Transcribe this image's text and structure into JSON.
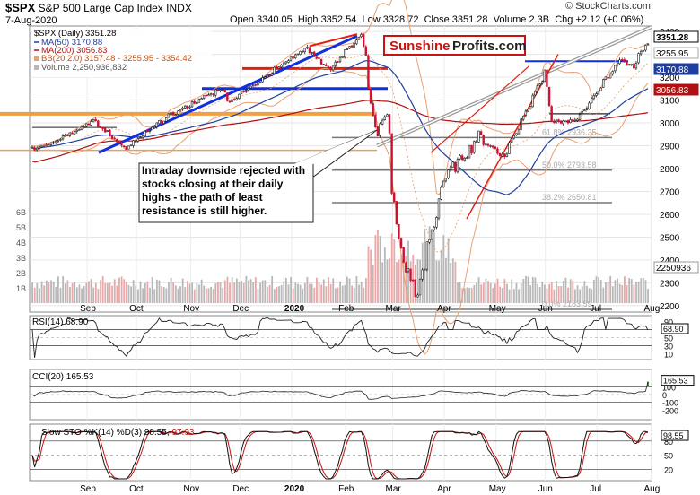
{
  "header": {
    "ticker": "$SPX",
    "name": "S&P 500 Large Cap Index",
    "exchange": "INDX",
    "date": "7-Aug-2020",
    "watermark": "© StockCharts.com",
    "open_label": "Open",
    "open": "3340.05",
    "high_label": "High",
    "high": "3352.54",
    "low_label": "Low",
    "low": "3328.72",
    "close_label": "Close",
    "close": "3351.28",
    "volume_label": "Volume",
    "volume": "2.3B",
    "chg_label": "Chg",
    "chg": "+2.12 (+0.06%)"
  },
  "branding": {
    "part1": "Sunshine",
    "part2": "Profits.com"
  },
  "legend": {
    "price": "$SPX (Daily) 3351.28",
    "ma50": "MA(50) 3170.88",
    "ma200": "MA(200) 3056.83",
    "bb": "BB(20,2.0) 3157.48 - 3255.95 - 3354.42",
    "volume": "Volume 2,250,936,832"
  },
  "annotation": "Intraday downside rejected with stocks closing at their daily highs - the path of least resistance is still higher.",
  "colors": {
    "up": "#1a1a1a",
    "down": "#cc1133",
    "ma50": "#1f3fa0",
    "ma200": "#b01010",
    "bb": "#e8a070",
    "trend_blue": "#1030e0",
    "orange": "#f0a040",
    "red_line": "#e02010",
    "vol_up": "#b8b8b8",
    "vol_down": "#e8a8a8",
    "cci_fill": "#4a7a4a",
    "cci_neg": "#7a4a4a"
  },
  "fib_labels": [
    "61.8% 2936.35",
    "50.0% 2793.58",
    "38.2% 2650.81",
    "0.0% 2183.59"
  ],
  "chart_data": [
    {
      "type": "candlestick",
      "title": "$SPX (Daily) 3351.28",
      "x_tick_labels": [
        "Sep",
        "Oct",
        "Nov",
        "Dec",
        "2020",
        "Feb",
        "Mar",
        "Apr",
        "May",
        "Jun",
        "Jul",
        "Aug"
      ],
      "y_tick_labels": [
        "3400",
        "3300",
        "3200",
        "3100",
        "3000",
        "2900",
        "2800",
        "2700",
        "2600",
        "2500",
        "2400",
        "2300",
        "2200"
      ],
      "ylim": [
        2180,
        3420
      ],
      "value_badges": [
        "3351.28",
        "3255.95",
        "3170.88",
        "3056.83"
      ],
      "volume_badge": "2250936",
      "volume_axis_labels": [
        "6B",
        "5B",
        "4B",
        "3B",
        "2B",
        "1B"
      ],
      "close_anchors": [
        {
          "date": "2019-08-07",
          "close": 2885
        },
        {
          "date": "2019-08-20",
          "close": 2920
        },
        {
          "date": "2019-09-12",
          "close": 3008
        },
        {
          "date": "2019-10-02",
          "close": 2888
        },
        {
          "date": "2019-10-25",
          "close": 3020
        },
        {
          "date": "2019-11-27",
          "close": 3150
        },
        {
          "date": "2019-12-03",
          "close": 3095
        },
        {
          "date": "2020-01-17",
          "close": 3330
        },
        {
          "date": "2020-01-31",
          "close": 3230
        },
        {
          "date": "2020-02-19",
          "close": 3386
        },
        {
          "date": "2020-02-28",
          "close": 2954
        },
        {
          "date": "2020-03-05",
          "close": 3023
        },
        {
          "date": "2020-03-12",
          "close": 2480
        },
        {
          "date": "2020-03-16",
          "close": 2386
        },
        {
          "date": "2020-03-23",
          "close": 2237
        },
        {
          "date": "2020-04-08",
          "close": 2750
        },
        {
          "date": "2020-04-29",
          "close": 2939
        },
        {
          "date": "2020-05-14",
          "close": 2852
        },
        {
          "date": "2020-06-08",
          "close": 3232
        },
        {
          "date": "2020-06-11",
          "close": 3002
        },
        {
          "date": "2020-06-26",
          "close": 3009
        },
        {
          "date": "2020-07-22",
          "close": 3276
        },
        {
          "date": "2020-07-30",
          "close": 3246
        },
        {
          "date": "2020-08-07",
          "close": 3351
        }
      ]
    },
    {
      "type": "line",
      "title": "RSI(14) 68.90",
      "value": 68.9,
      "y_tick_labels": [
        "90",
        "70",
        "50",
        "30",
        "10"
      ],
      "ylim": [
        0,
        100
      ]
    },
    {
      "type": "area",
      "title": "CCI(20) 165.53",
      "value": 165.53,
      "y_tick_labels": [
        "200",
        "100",
        "0",
        "-100",
        "-200"
      ],
      "ylim": [
        -300,
        300
      ]
    },
    {
      "type": "line",
      "title": "Slow STO %K(14) %D(3) 98.55, 97.93",
      "series": [
        {
          "name": "%K(14)",
          "value": 98.55
        },
        {
          "name": "%D(3)",
          "value": 97.93
        }
      ],
      "y_tick_labels": [
        "80",
        "50",
        "20"
      ],
      "ylim": [
        0,
        110
      ],
      "x_tick_labels": [
        "Sep",
        "Oct",
        "Nov",
        "Dec",
        "2020",
        "Feb",
        "Mar",
        "Apr",
        "May",
        "Jun",
        "Jul",
        "Aug"
      ]
    }
  ]
}
